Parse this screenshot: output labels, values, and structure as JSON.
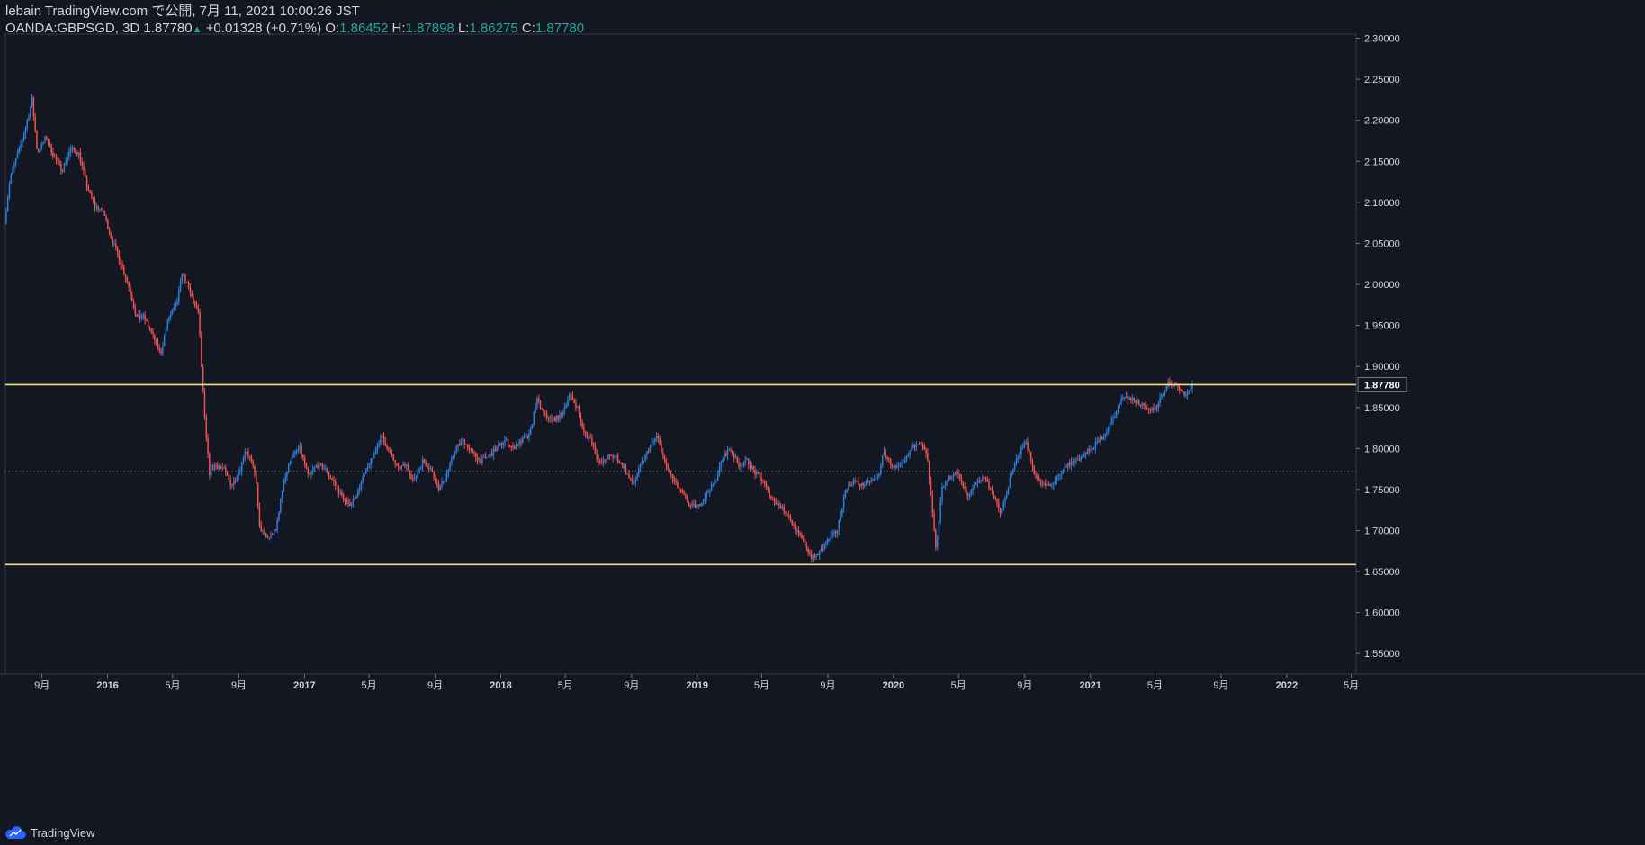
{
  "header": {
    "line1": "lebain TradingView.com で公開, 7月 11, 2021 10:00:26 JST",
    "symbol": "OANDA:GBPSGD, 3D",
    "last": "1.87780",
    "change": "+0.01328 (+0.71%)",
    "o_label": "O:",
    "o_value": "1.86452",
    "h_label": "H:",
    "h_value": "1.87898",
    "l_label": "L:",
    "l_value": "1.86275",
    "c_label": "C:",
    "c_value": "1.87780"
  },
  "footer": {
    "brand": "TradingView"
  },
  "colors": {
    "background": "#131722",
    "up": "#2f7fd8",
    "down": "#ef5350",
    "level_line": "#f3e07a",
    "text": "#d1d4dc",
    "grid": "#2a2e39",
    "last_price_dotted": "#6a6d78"
  },
  "chart_data": {
    "type": "candlestick",
    "symbol": "OANDA:GBPSGD",
    "interval": "3D",
    "ylim": [
      1.525,
      2.305
    ],
    "x_range": [
      "2015-06-25",
      "2022-05-10"
    ],
    "y_ticks": [
      "2.30000",
      "2.25000",
      "2.20000",
      "2.15000",
      "2.10000",
      "2.05000",
      "2.00000",
      "1.95000",
      "1.90000",
      "1.85000",
      "1.80000",
      "1.75000",
      "1.70000",
      "1.65000",
      "1.60000",
      "1.55000"
    ],
    "y_tick_values": [
      2.3,
      2.25,
      2.2,
      2.15,
      2.1,
      2.05,
      2.0,
      1.95,
      1.9,
      1.85,
      1.8,
      1.75,
      1.7,
      1.65,
      1.6,
      1.55
    ],
    "x_ticks": [
      {
        "label": "9月",
        "date": "2015-09-01"
      },
      {
        "label": "2016",
        "date": "2016-01-01"
      },
      {
        "label": "5月",
        "date": "2016-05-01"
      },
      {
        "label": "9月",
        "date": "2016-09-01"
      },
      {
        "label": "2017",
        "date": "2017-01-01"
      },
      {
        "label": "5月",
        "date": "2017-05-01"
      },
      {
        "label": "9月",
        "date": "2017-09-01"
      },
      {
        "label": "2018",
        "date": "2018-01-01"
      },
      {
        "label": "5月",
        "date": "2018-05-01"
      },
      {
        "label": "9月",
        "date": "2018-09-01"
      },
      {
        "label": "2019",
        "date": "2019-01-01"
      },
      {
        "label": "5月",
        "date": "2019-05-01"
      },
      {
        "label": "9月",
        "date": "2019-09-01"
      },
      {
        "label": "2020",
        "date": "2020-01-01"
      },
      {
        "label": "5月",
        "date": "2020-05-01"
      },
      {
        "label": "9月",
        "date": "2020-09-01"
      },
      {
        "label": "2021",
        "date": "2021-01-01"
      },
      {
        "label": "5月",
        "date": "2021-05-01"
      },
      {
        "label": "9月",
        "date": "2021-09-01"
      },
      {
        "label": "2022",
        "date": "2022-01-01"
      },
      {
        "label": "5月",
        "date": "2022-05-01"
      }
    ],
    "horizontal_levels": [
      1.8778,
      1.6585
    ],
    "last_price": 1.8778,
    "last_price_label": "1.87780",
    "prior_close_dotted": 1.7725,
    "price_path": [
      [
        "2015-06-25",
        2.075
      ],
      [
        "2015-07-05",
        2.13
      ],
      [
        "2015-07-15",
        2.15
      ],
      [
        "2015-08-01",
        2.185
      ],
      [
        "2015-08-15",
        2.225
      ],
      [
        "2015-08-25",
        2.16
      ],
      [
        "2015-09-10",
        2.18
      ],
      [
        "2015-09-25",
        2.155
      ],
      [
        "2015-10-10",
        2.14
      ],
      [
        "2015-10-25",
        2.165
      ],
      [
        "2015-11-10",
        2.16
      ],
      [
        "2015-11-25",
        2.12
      ],
      [
        "2015-12-10",
        2.095
      ],
      [
        "2015-12-25",
        2.09
      ],
      [
        "2016-01-10",
        2.055
      ],
      [
        "2016-01-25",
        2.03
      ],
      [
        "2016-02-10",
        2.0
      ],
      [
        "2016-02-25",
        1.96
      ],
      [
        "2016-03-10",
        1.96
      ],
      [
        "2016-03-25",
        1.94
      ],
      [
        "2016-04-10",
        1.915
      ],
      [
        "2016-04-25",
        1.96
      ],
      [
        "2016-05-10",
        1.975
      ],
      [
        "2016-05-20",
        2.015
      ],
      [
        "2016-06-01",
        1.995
      ],
      [
        "2016-06-12",
        1.975
      ],
      [
        "2016-06-20",
        1.965
      ],
      [
        "2016-06-24",
        1.91
      ],
      [
        "2016-07-02",
        1.825
      ],
      [
        "2016-07-10",
        1.77
      ],
      [
        "2016-07-20",
        1.78
      ],
      [
        "2016-08-05",
        1.775
      ],
      [
        "2016-08-20",
        1.755
      ],
      [
        "2016-09-05",
        1.775
      ],
      [
        "2016-09-15",
        1.8
      ],
      [
        "2016-09-25",
        1.785
      ],
      [
        "2016-10-05",
        1.76
      ],
      [
        "2016-10-10",
        1.705
      ],
      [
        "2016-10-25",
        1.69
      ],
      [
        "2016-11-10",
        1.7
      ],
      [
        "2016-11-25",
        1.76
      ],
      [
        "2016-12-10",
        1.79
      ],
      [
        "2016-12-25",
        1.8
      ],
      [
        "2017-01-10",
        1.765
      ],
      [
        "2017-01-25",
        1.78
      ],
      [
        "2017-02-10",
        1.775
      ],
      [
        "2017-02-25",
        1.76
      ],
      [
        "2017-03-10",
        1.745
      ],
      [
        "2017-03-25",
        1.73
      ],
      [
        "2017-04-10",
        1.745
      ],
      [
        "2017-04-25",
        1.77
      ],
      [
        "2017-05-10",
        1.79
      ],
      [
        "2017-05-25",
        1.815
      ],
      [
        "2017-06-10",
        1.795
      ],
      [
        "2017-06-25",
        1.775
      ],
      [
        "2017-07-10",
        1.78
      ],
      [
        "2017-07-25",
        1.76
      ],
      [
        "2017-08-10",
        1.785
      ],
      [
        "2017-08-25",
        1.775
      ],
      [
        "2017-09-10",
        1.75
      ],
      [
        "2017-09-25",
        1.77
      ],
      [
        "2017-10-10",
        1.8
      ],
      [
        "2017-10-25",
        1.81
      ],
      [
        "2017-11-10",
        1.795
      ],
      [
        "2017-11-25",
        1.785
      ],
      [
        "2017-12-10",
        1.79
      ],
      [
        "2017-12-25",
        1.8
      ],
      [
        "2018-01-10",
        1.81
      ],
      [
        "2018-01-25",
        1.8
      ],
      [
        "2018-02-10",
        1.81
      ],
      [
        "2018-02-25",
        1.815
      ],
      [
        "2018-03-10",
        1.86
      ],
      [
        "2018-03-25",
        1.84
      ],
      [
        "2018-04-10",
        1.835
      ],
      [
        "2018-04-25",
        1.84
      ],
      [
        "2018-05-10",
        1.865
      ],
      [
        "2018-05-25",
        1.85
      ],
      [
        "2018-06-05",
        1.82
      ],
      [
        "2018-06-20",
        1.81
      ],
      [
        "2018-07-05",
        1.78
      ],
      [
        "2018-07-20",
        1.79
      ],
      [
        "2018-08-05",
        1.79
      ],
      [
        "2018-08-20",
        1.775
      ],
      [
        "2018-09-05",
        1.755
      ],
      [
        "2018-09-20",
        1.78
      ],
      [
        "2018-10-05",
        1.8
      ],
      [
        "2018-10-20",
        1.815
      ],
      [
        "2018-11-05",
        1.78
      ],
      [
        "2018-11-20",
        1.76
      ],
      [
        "2018-12-05",
        1.745
      ],
      [
        "2018-12-20",
        1.73
      ],
      [
        "2019-01-05",
        1.73
      ],
      [
        "2019-01-20",
        1.745
      ],
      [
        "2019-02-05",
        1.76
      ],
      [
        "2019-02-20",
        1.79
      ],
      [
        "2019-03-05",
        1.8
      ],
      [
        "2019-03-20",
        1.78
      ],
      [
        "2019-04-05",
        1.785
      ],
      [
        "2019-04-20",
        1.77
      ],
      [
        "2019-05-05",
        1.76
      ],
      [
        "2019-05-20",
        1.74
      ],
      [
        "2019-06-05",
        1.73
      ],
      [
        "2019-06-20",
        1.72
      ],
      [
        "2019-07-05",
        1.7
      ],
      [
        "2019-07-20",
        1.685
      ],
      [
        "2019-08-05",
        1.665
      ],
      [
        "2019-08-20",
        1.675
      ],
      [
        "2019-09-05",
        1.69
      ],
      [
        "2019-09-20",
        1.7
      ],
      [
        "2019-10-05",
        1.75
      ],
      [
        "2019-10-20",
        1.76
      ],
      [
        "2019-11-05",
        1.755
      ],
      [
        "2019-11-20",
        1.76
      ],
      [
        "2019-12-05",
        1.765
      ],
      [
        "2019-12-15",
        1.795
      ],
      [
        "2020-01-05",
        1.775
      ],
      [
        "2020-01-20",
        1.78
      ],
      [
        "2020-02-05",
        1.8
      ],
      [
        "2020-02-20",
        1.81
      ],
      [
        "2020-03-05",
        1.79
      ],
      [
        "2020-03-15",
        1.72
      ],
      [
        "2020-03-22",
        1.67
      ],
      [
        "2020-04-01",
        1.75
      ],
      [
        "2020-04-15",
        1.765
      ],
      [
        "2020-05-01",
        1.77
      ],
      [
        "2020-05-20",
        1.74
      ],
      [
        "2020-06-05",
        1.76
      ],
      [
        "2020-06-20",
        1.765
      ],
      [
        "2020-07-05",
        1.745
      ],
      [
        "2020-07-20",
        1.72
      ],
      [
        "2020-08-05",
        1.76
      ],
      [
        "2020-08-20",
        1.79
      ],
      [
        "2020-09-05",
        1.81
      ],
      [
        "2020-09-20",
        1.77
      ],
      [
        "2020-10-05",
        1.755
      ],
      [
        "2020-10-20",
        1.755
      ],
      [
        "2020-11-05",
        1.765
      ],
      [
        "2020-11-20",
        1.78
      ],
      [
        "2020-12-05",
        1.785
      ],
      [
        "2020-12-20",
        1.79
      ],
      [
        "2021-01-05",
        1.8
      ],
      [
        "2021-01-20",
        1.81
      ],
      [
        "2021-02-05",
        1.825
      ],
      [
        "2021-02-20",
        1.845
      ],
      [
        "2021-03-05",
        1.865
      ],
      [
        "2021-03-20",
        1.86
      ],
      [
        "2021-04-05",
        1.855
      ],
      [
        "2021-04-20",
        1.845
      ],
      [
        "2021-05-05",
        1.85
      ],
      [
        "2021-05-15",
        1.865
      ],
      [
        "2021-05-28",
        1.88
      ],
      [
        "2021-06-10",
        1.878
      ],
      [
        "2021-06-20",
        1.87
      ],
      [
        "2021-07-01",
        1.866
      ],
      [
        "2021-07-10",
        1.8778
      ]
    ]
  }
}
